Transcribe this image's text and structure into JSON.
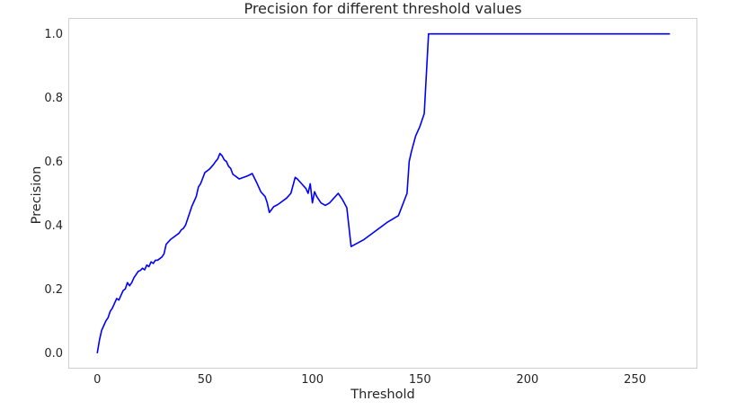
{
  "chart_data": {
    "type": "line",
    "title": "Precision for different threshold values",
    "xlabel": "Threshold",
    "ylabel": "Precision",
    "xlim": [
      -13.5,
      279
    ],
    "ylim": [
      -0.05,
      1.05
    ],
    "xticks": [
      0,
      50,
      100,
      150,
      200,
      250
    ],
    "xtick_labels": [
      "0",
      "50",
      "100",
      "150",
      "200",
      "250"
    ],
    "yticks": [
      0.0,
      0.2,
      0.4,
      0.6,
      0.8,
      1.0
    ],
    "ytick_labels": [
      "0.0",
      "0.2",
      "0.4",
      "0.6",
      "0.8",
      "1.0"
    ],
    "grid": true,
    "legend": "none",
    "series": [
      {
        "color": "#0000ff",
        "x": [
          0,
          1,
          2,
          3,
          4,
          5,
          6,
          7,
          8,
          9,
          10,
          11,
          12,
          13,
          14,
          15,
          16,
          17,
          18,
          19,
          20,
          21,
          22,
          23,
          24,
          25,
          26,
          27,
          28,
          29,
          30,
          31,
          32,
          34,
          36,
          38,
          39,
          40,
          41,
          42,
          43,
          44,
          45,
          46,
          47,
          48,
          50,
          52,
          54,
          55,
          56,
          57,
          58,
          59,
          60,
          61,
          62,
          63,
          64,
          66,
          68,
          70,
          72,
          74,
          76,
          78,
          79,
          80,
          82,
          84,
          86,
          88,
          90,
          92,
          93,
          95,
          97,
          98,
          99,
          100,
          101,
          102,
          104,
          106,
          108,
          110,
          112,
          114,
          116,
          118,
          124,
          130,
          135,
          140,
          144,
          145,
          146,
          148,
          150,
          152,
          154,
          156,
          158,
          160,
          180,
          200,
          220,
          240,
          260,
          266
        ],
        "y": [
          0.0,
          0.04,
          0.07,
          0.085,
          0.1,
          0.11,
          0.13,
          0.14,
          0.155,
          0.17,
          0.165,
          0.18,
          0.195,
          0.2,
          0.22,
          0.21,
          0.22,
          0.235,
          0.245,
          0.255,
          0.258,
          0.265,
          0.26,
          0.275,
          0.27,
          0.285,
          0.28,
          0.29,
          0.29,
          0.295,
          0.3,
          0.31,
          0.34,
          0.355,
          0.365,
          0.375,
          0.385,
          0.39,
          0.4,
          0.42,
          0.44,
          0.46,
          0.475,
          0.49,
          0.52,
          0.53,
          0.565,
          0.575,
          0.59,
          0.6,
          0.608,
          0.625,
          0.618,
          0.605,
          0.6,
          0.585,
          0.578,
          0.56,
          0.555,
          0.545,
          0.55,
          0.555,
          0.562,
          0.535,
          0.505,
          0.49,
          0.47,
          0.44,
          0.458,
          0.465,
          0.475,
          0.485,
          0.5,
          0.55,
          0.545,
          0.53,
          0.515,
          0.5,
          0.53,
          0.47,
          0.505,
          0.49,
          0.47,
          0.462,
          0.47,
          0.485,
          0.5,
          0.48,
          0.455,
          0.333,
          0.355,
          0.385,
          0.41,
          0.43,
          0.5,
          0.6,
          0.63,
          0.68,
          0.71,
          0.75,
          1.0,
          1.0,
          1.0,
          1.0,
          1.0,
          1.0,
          1.0,
          1.0,
          1.0,
          1.0
        ]
      }
    ]
  }
}
